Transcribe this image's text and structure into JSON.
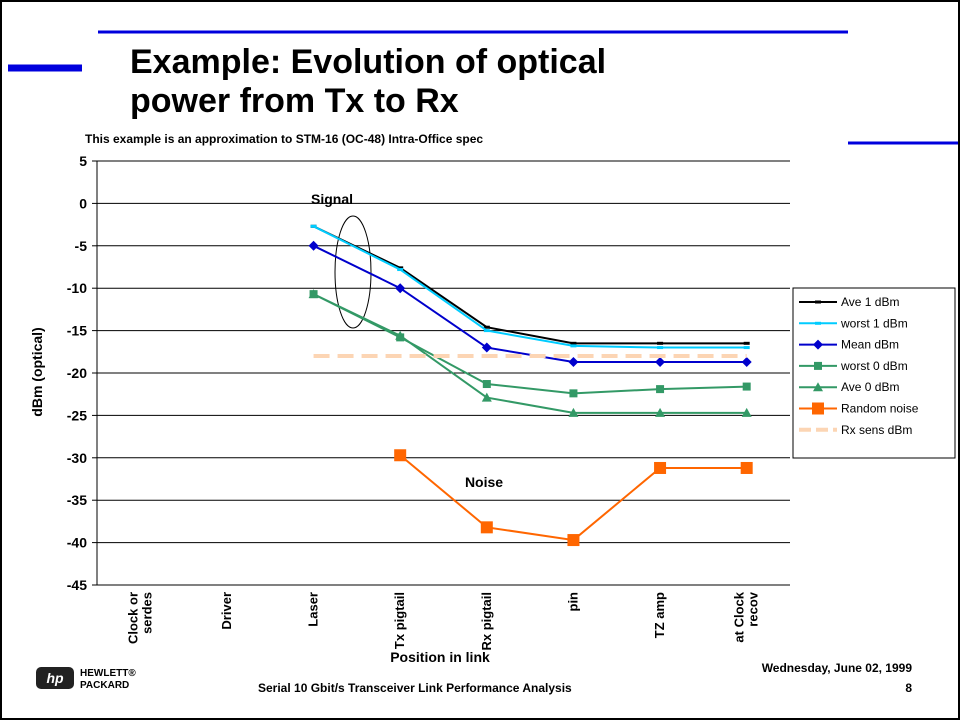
{
  "slide": {
    "title_line1": "Example: Evolution of optical",
    "title_line2": "power from Tx to Rx",
    "logo_mark": "hp",
    "logo_line1": "HEWLETT®",
    "logo_line2": "PACKARD",
    "footer": "Serial 10 Gbit/s Transceiver Link Performance Analysis",
    "date": "Wednesday, June 02, 1999",
    "page": "8"
  },
  "chart_data": {
    "type": "line",
    "title": "This example is an approximation to STM-16 (OC-48) Intra-Office spec",
    "y_label": "dBm (optical)",
    "x_label": "Position in link",
    "annotations": [
      "Signal",
      "Noise"
    ],
    "categories": [
      "Clock or serdes",
      "Driver",
      "Laser",
      "Tx pigtail",
      "Rx pigtail",
      "pin",
      "TZ amp",
      "at Clock recov"
    ],
    "ylim": [
      -45,
      5
    ],
    "yticks": [
      -45,
      -40,
      -35,
      -30,
      -25,
      -20,
      -15,
      -10,
      -5,
      0,
      5
    ],
    "grid": true,
    "legend": "right",
    "series": [
      {
        "name": "Ave 1 dBm",
        "color": "#000000",
        "marker": "dash",
        "values": [
          null,
          null,
          -2.7,
          -7.6,
          -14.6,
          -16.5,
          -16.5,
          -16.5
        ]
      },
      {
        "name": "worst 1 dBm",
        "color": "#00ccff",
        "marker": "dash",
        "values": [
          null,
          null,
          -2.7,
          -7.8,
          -15.0,
          -16.8,
          -17.0,
          -17.0
        ]
      },
      {
        "name": "Mean dBm",
        "color": "#0000cc",
        "marker": "diamond",
        "values": [
          null,
          null,
          -5,
          -10,
          -17,
          -18.7,
          -18.7,
          -18.7
        ]
      },
      {
        "name": "worst 0 dBm",
        "color": "#339966",
        "marker": "square",
        "values": [
          null,
          null,
          -10.7,
          -15.8,
          -21.3,
          -22.4,
          -21.9,
          -21.6
        ]
      },
      {
        "name": "Ave 0 dBm",
        "color": "#339966",
        "marker": "triangle",
        "values": [
          null,
          null,
          -10.7,
          -15.6,
          -22.9,
          -24.7,
          -24.7,
          -24.7
        ]
      },
      {
        "name": "Random noise",
        "color": "#ff6600",
        "marker": "bigsquare",
        "values": [
          null,
          null,
          null,
          -29.7,
          -38.2,
          -39.7,
          -31.2,
          -31.2
        ]
      },
      {
        "name": "Rx sens dBm",
        "color": "#fcd5b4",
        "marker": "none",
        "dashed": true,
        "values": [
          null,
          null,
          -18,
          -18,
          -18,
          -18,
          -18,
          -18
        ]
      }
    ]
  }
}
